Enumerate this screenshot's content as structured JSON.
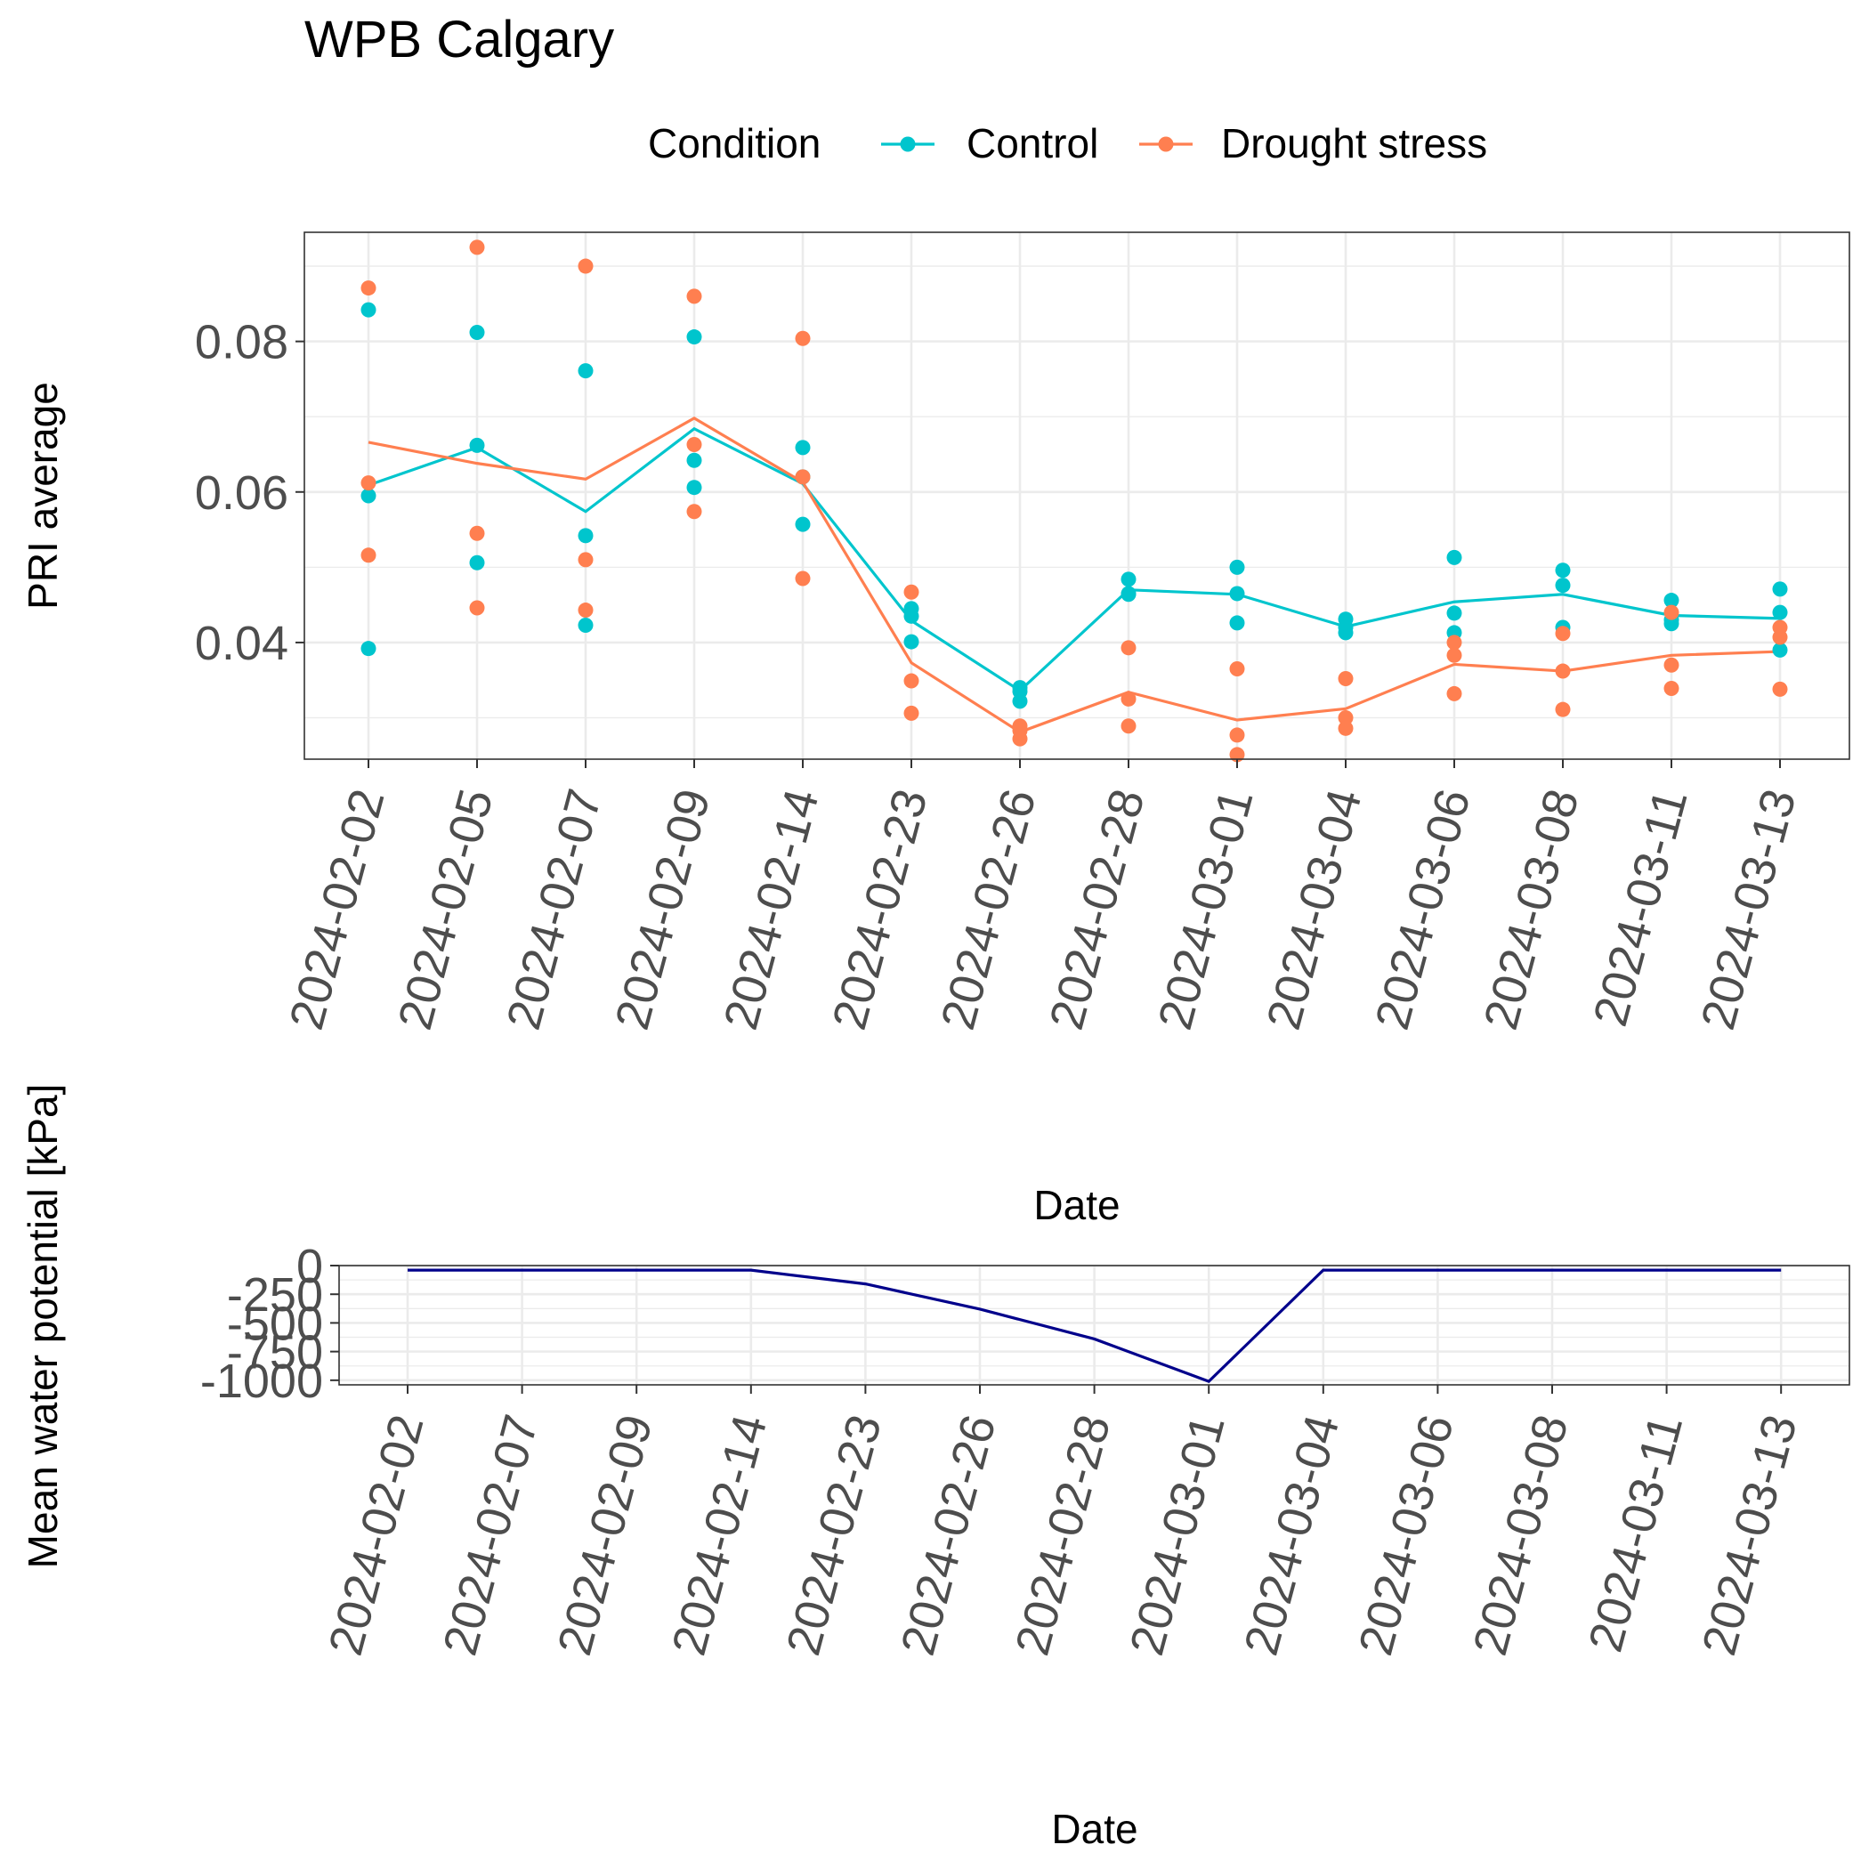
{
  "title": "WPB Calgary",
  "legend": {
    "title": "Condition",
    "items": [
      {
        "label": "Control",
        "color": "#00C5CD"
      },
      {
        "label": "Drought stress",
        "color": "#FF7F50"
      }
    ]
  },
  "chart_data": [
    {
      "type": "line",
      "subtype": "line-with-points",
      "ylabel": "PRI average",
      "xlabel": "Date",
      "x": [
        "2024-02-02",
        "2024-02-05",
        "2024-02-07",
        "2024-02-09",
        "2024-02-14",
        "2024-02-23",
        "2024-02-26",
        "2024-02-28",
        "2024-03-01",
        "2024-03-04",
        "2024-03-06",
        "2024-03-08",
        "2024-03-11",
        "2024-03-13"
      ],
      "y_ticks": [
        "0.04",
        "0.06",
        "0.08"
      ],
      "ylim": [
        0.0245,
        0.0945
      ],
      "grid": true,
      "legend_position": "top",
      "series": [
        {
          "name": "Control",
          "color": "#00C5CD",
          "mean": [
            0.0609,
            0.0659,
            0.0574,
            0.0684,
            0.0611,
            0.0429,
            0.0336,
            0.047,
            0.0464,
            0.0421,
            0.0454,
            0.0464,
            0.0436,
            0.0432
          ],
          "points": [
            [
              0.0842,
              0.0595,
              0.0392
            ],
            [
              0.0812,
              0.0662,
              0.0506
            ],
            [
              0.0761,
              0.0542,
              0.0423
            ],
            [
              0.0806,
              0.0642,
              0.0606
            ],
            [
              0.0659,
              0.062,
              0.0557
            ],
            [
              0.0445,
              0.0435,
              0.0401
            ],
            [
              0.034,
              0.0335,
              0.0322
            ],
            [
              0.0484,
              0.0464,
              0.0465
            ],
            [
              0.05,
              0.0465,
              0.0426
            ],
            [
              0.0431,
              0.042,
              0.0413
            ],
            [
              0.0513,
              0.0439,
              0.0413
            ],
            [
              0.0496,
              0.0476,
              0.042
            ],
            [
              0.0456,
              0.043,
              0.0425
            ],
            [
              0.0471,
              0.044,
              0.039
            ]
          ]
        },
        {
          "name": "Drought stress",
          "color": "#FF7F50",
          "mean": [
            0.0666,
            0.0638,
            0.0617,
            0.0698,
            0.0613,
            0.0373,
            0.0281,
            0.0334,
            0.0297,
            0.0312,
            0.0371,
            0.0362,
            0.0383,
            0.0388
          ],
          "points": [
            [
              0.0871,
              0.0612,
              0.0516
            ],
            [
              0.0925,
              0.0545,
              0.0446
            ],
            [
              0.09,
              0.051,
              0.0443
            ],
            [
              0.086,
              0.0663,
              0.0574
            ],
            [
              0.0804,
              0.062,
              0.0485
            ],
            [
              0.0467,
              0.0349,
              0.0306
            ],
            [
              0.0289,
              0.0283,
              0.0272
            ],
            [
              0.0393,
              0.0325,
              0.0289
            ],
            [
              0.0365,
              0.0277,
              0.0251
            ],
            [
              0.0352,
              0.03,
              0.0286
            ],
            [
              0.04,
              0.0383,
              0.0332
            ],
            [
              0.0412,
              0.0362,
              0.0311
            ],
            [
              0.044,
              0.037,
              0.0339
            ],
            [
              0.042,
              0.0407,
              0.0338
            ]
          ]
        }
      ]
    },
    {
      "type": "line",
      "ylabel": "Mean water potential [kPa]",
      "xlabel": "Date",
      "x": [
        "2024-02-02",
        "2024-02-07",
        "2024-02-09",
        "2024-02-14",
        "2024-02-23",
        "2024-02-26",
        "2024-02-28",
        "2024-03-01",
        "2024-03-04",
        "2024-03-06",
        "2024-03-08",
        "2024-03-11",
        "2024-03-13"
      ],
      "y_ticks": [
        "-1000",
        "-750",
        "-500",
        "-250",
        "0"
      ],
      "ylim": [
        -1040,
        0
      ],
      "grid": true,
      "series": [
        {
          "color": "#00008B",
          "values": [
            -40,
            -40,
            -40,
            -40,
            -160,
            -380,
            -640,
            -1010,
            -40,
            -40,
            -40,
            -40,
            -40
          ]
        }
      ]
    }
  ]
}
